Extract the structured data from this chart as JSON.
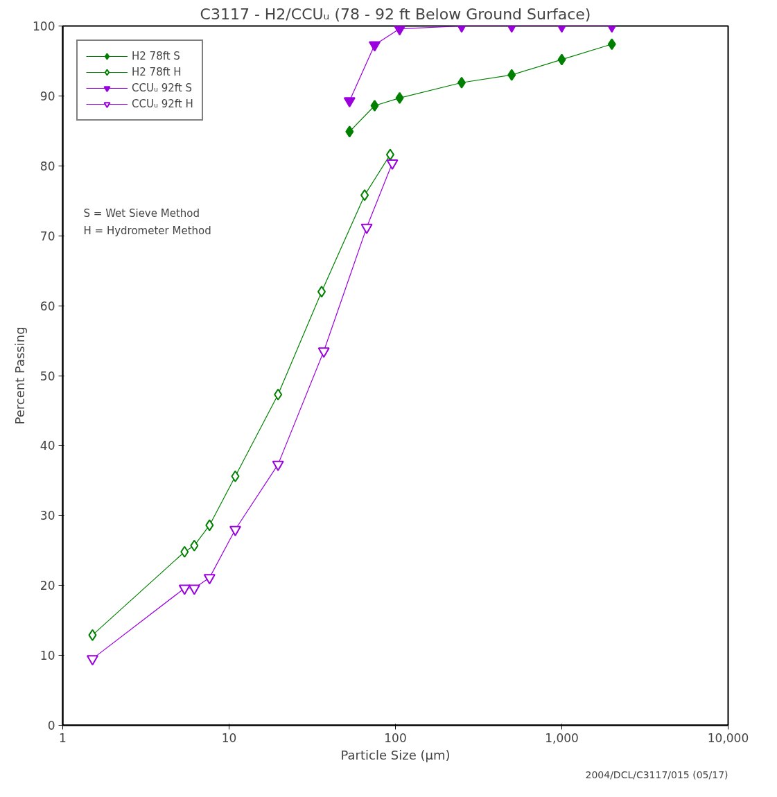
{
  "chart_data": {
    "type": "line",
    "title": "C3117 - H2/CCUᵤ (78 - 92 ft Below Ground Surface)",
    "xlabel": "Particle Size (µm)",
    "ylabel": "Percent Passing",
    "log": "x",
    "grid": false,
    "legend": "top left",
    "xlim": [
      1,
      10000
    ],
    "ylim": [
      0,
      100
    ],
    "xticks": [
      1,
      10,
      100,
      {
        "value": 1000,
        "label": "1,000"
      },
      {
        "value": 10000,
        "label": "10,000"
      }
    ],
    "yticks": [
      0,
      10,
      20,
      30,
      40,
      50,
      60,
      70,
      80,
      90,
      100
    ],
    "annotations": [
      "S = Wet Sieve Method",
      "H = Hydrometer Method",
      "2004/DCL/C3117/015 (05/17)"
    ],
    "series": [
      {
        "name": "H2 78ft S",
        "color": "#008000",
        "marker": "diamond",
        "x": [
          53,
          75,
          106,
          250,
          500,
          1000,
          2000
        ],
        "values": [
          84.9,
          88.6,
          89.7,
          91.9,
          93.0,
          95.2,
          97.4
        ]
      },
      {
        "name": "H2 78ft H",
        "color": "#008000",
        "marker": "diamond",
        "x": [
          1.51,
          5.4,
          6.18,
          7.63,
          10.9,
          19.7,
          36.0,
          65.3,
          93.0
        ],
        "values": [
          12.9,
          24.8,
          25.7,
          28.6,
          35.6,
          47.3,
          62.0,
          75.8,
          81.6
        ]
      },
      {
        "name": "CCUᵤ 92ft S",
        "color": "#9900dd",
        "marker": "triangle",
        "x": [
          53,
          75,
          106,
          250,
          500,
          1000,
          2000
        ],
        "values": [
          89.3,
          97.3,
          99.6,
          100,
          100,
          100,
          100
        ]
      },
      {
        "name": "CCUᵤ 92ft H",
        "color": "#9900dd",
        "marker": "triangle",
        "x": [
          1.51,
          5.4,
          6.18,
          7.63,
          10.9,
          19.7,
          37.1,
          67.2,
          95.8
        ],
        "values": [
          9.5,
          19.6,
          19.6,
          21.1,
          28.0,
          37.3,
          53.5,
          71.2,
          80.4
        ]
      }
    ]
  }
}
